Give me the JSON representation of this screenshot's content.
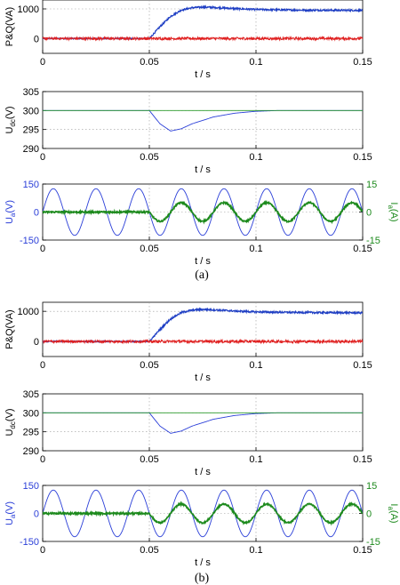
{
  "figure": {
    "captions": [
      "(a)",
      "(b)"
    ],
    "colors": {
      "p": "#1f3fc4",
      "q": "#e02020",
      "udc": "#2b3fd8",
      "ref": "#2a9a2a",
      "ua": "#2b3fd8",
      "ia": "#1d8a1d",
      "grid": "#9a9a9a"
    }
  },
  "chart_data": [
    {
      "panel": "a",
      "type": "line",
      "ylabel": "P&Q(VA)",
      "xlabel": "t / s",
      "xlim": [
        0,
        0.15
      ],
      "ylim": [
        -500,
        1300
      ],
      "x_ticks": [
        "0",
        "0.05",
        "0.1",
        "0.15"
      ],
      "y_ticks": [
        "0",
        "1000"
      ],
      "grid": true,
      "series": [
        {
          "key": "p",
          "points": [
            [
              0,
              0
            ],
            [
              0.05,
              0
            ],
            [
              0.055,
              400
            ],
            [
              0.06,
              750
            ],
            [
              0.065,
              960
            ],
            [
              0.07,
              1040
            ],
            [
              0.075,
              1060
            ],
            [
              0.08,
              1050
            ],
            [
              0.09,
              1010
            ],
            [
              0.1,
              980
            ],
            [
              0.12,
              960
            ],
            [
              0.15,
              950
            ]
          ]
        },
        {
          "key": "q",
          "points": [
            [
              0,
              0
            ],
            [
              0.15,
              0
            ]
          ]
        }
      ]
    },
    {
      "panel": "a",
      "type": "line",
      "ylabel": "U_dc(V)",
      "xlabel": "t / s",
      "xlim": [
        0,
        0.15
      ],
      "ylim": [
        290,
        305
      ],
      "x_ticks": [
        "0",
        "0.05",
        "0.1",
        "0.15"
      ],
      "y_ticks": [
        "290",
        "295",
        "300",
        "305"
      ],
      "grid": true,
      "series": [
        {
          "key": "udc",
          "points": [
            [
              0,
              300
            ],
            [
              0.05,
              300
            ],
            [
              0.055,
              296.5
            ],
            [
              0.06,
              294.6
            ],
            [
              0.065,
              295.2
            ],
            [
              0.07,
              296.5
            ],
            [
              0.08,
              298.3
            ],
            [
              0.09,
              299.3
            ],
            [
              0.1,
              299.8
            ],
            [
              0.11,
              300
            ],
            [
              0.15,
              300
            ]
          ]
        },
        {
          "key": "ref",
          "points": [
            [
              0,
              300
            ],
            [
              0.15,
              300
            ]
          ]
        }
      ]
    },
    {
      "panel": "a",
      "type": "line",
      "ylabel": "U_a(V)",
      "y2label": "I_a(A)",
      "xlabel": "t / s",
      "xlim": [
        0,
        0.15
      ],
      "ylim": [
        -150,
        150
      ],
      "y2lim": [
        -15,
        15
      ],
      "x_ticks": [
        "0",
        "0.05",
        "0.1",
        "0.15"
      ],
      "y_ticks": [
        "-150",
        "0",
        "150"
      ],
      "y2_ticks": [
        "-15",
        "0",
        "15"
      ],
      "grid": true,
      "series": [
        {
          "key": "ua",
          "axis": "left",
          "amplitude": 125,
          "freq_hz": 50
        },
        {
          "key": "ia",
          "axis": "right",
          "before_t": 0.05,
          "after_amplitude": 5,
          "freq_hz": 50
        }
      ]
    },
    {
      "panel": "b",
      "type": "line",
      "ylabel": "P&Q(VA)",
      "xlabel": "t / s",
      "xlim": [
        0,
        0.15
      ],
      "ylim": [
        -500,
        1300
      ],
      "x_ticks": [
        "0",
        "0.05",
        "0.1",
        "0.15"
      ],
      "y_ticks": [
        "0",
        "1000"
      ],
      "grid": true,
      "series": [
        {
          "key": "p",
          "points": [
            [
              0,
              0
            ],
            [
              0.05,
              0
            ],
            [
              0.055,
              400
            ],
            [
              0.06,
              750
            ],
            [
              0.065,
              960
            ],
            [
              0.07,
              1040
            ],
            [
              0.075,
              1060
            ],
            [
              0.08,
              1050
            ],
            [
              0.09,
              1010
            ],
            [
              0.1,
              980
            ],
            [
              0.12,
              960
            ],
            [
              0.15,
              950
            ]
          ]
        },
        {
          "key": "q",
          "points": [
            [
              0,
              0
            ],
            [
              0.15,
              0
            ]
          ]
        }
      ]
    },
    {
      "panel": "b",
      "type": "line",
      "ylabel": "U_dc(V)",
      "xlabel": "t / s",
      "xlim": [
        0,
        0.15
      ],
      "ylim": [
        290,
        305
      ],
      "x_ticks": [
        "0",
        "0.05",
        "0.1",
        "0.15"
      ],
      "y_ticks": [
        "290",
        "295",
        "300",
        "305"
      ],
      "grid": true,
      "series": [
        {
          "key": "udc",
          "points": [
            [
              0,
              300
            ],
            [
              0.05,
              300
            ],
            [
              0.055,
              296.5
            ],
            [
              0.06,
              294.6
            ],
            [
              0.065,
              295.2
            ],
            [
              0.07,
              296.5
            ],
            [
              0.08,
              298.3
            ],
            [
              0.09,
              299.3
            ],
            [
              0.1,
              299.8
            ],
            [
              0.11,
              300
            ],
            [
              0.15,
              300
            ]
          ]
        },
        {
          "key": "ref",
          "points": [
            [
              0,
              300
            ],
            [
              0.15,
              300
            ]
          ]
        }
      ]
    },
    {
      "panel": "b",
      "type": "line",
      "ylabel": "U_a(V)",
      "y2label": "I_a(A)",
      "xlabel": "t / s",
      "xlim": [
        0,
        0.15
      ],
      "ylim": [
        -150,
        150
      ],
      "y2lim": [
        -15,
        15
      ],
      "x_ticks": [
        "0",
        "0.05",
        "0.1",
        "0.15"
      ],
      "y_ticks": [
        "-150",
        "0",
        "150"
      ],
      "y2_ticks": [
        "-15",
        "0",
        "15"
      ],
      "grid": true,
      "series": [
        {
          "key": "ua",
          "axis": "left",
          "amplitude": 125,
          "freq_hz": 50
        },
        {
          "key": "ia",
          "axis": "right",
          "before_t": 0.05,
          "after_amplitude": 5,
          "freq_hz": 50
        }
      ]
    }
  ]
}
